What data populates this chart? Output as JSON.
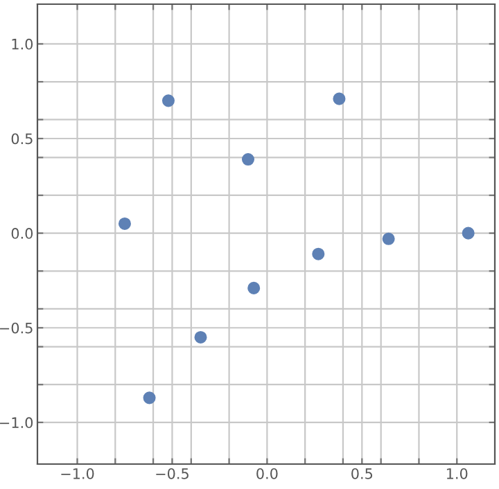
{
  "chart_data": {
    "type": "scatter",
    "x": [
      -0.52,
      0.38,
      -0.1,
      -0.75,
      1.06,
      0.64,
      0.27,
      -0.07,
      -0.35,
      -0.62
    ],
    "series": [
      {
        "color": "#5e81b5",
        "values": [
          0.7,
          0.71,
          0.39,
          0.05,
          0.0,
          -0.03,
          -0.11,
          -0.29,
          -0.55,
          -0.87
        ]
      }
    ],
    "marker": "circle",
    "grid": true,
    "legend": false,
    "xlim": [
      -1.21,
      1.2
    ],
    "ylim": [
      -1.22,
      1.21
    ],
    "xticks": [
      {
        "value": -1.0,
        "label": "−1.0"
      },
      {
        "value": -0.8,
        "label": null
      },
      {
        "value": -0.6,
        "label": null
      },
      {
        "value": -0.5,
        "label": "−0.5"
      },
      {
        "value": -0.4,
        "label": null
      },
      {
        "value": -0.2,
        "label": null
      },
      {
        "value": 0.0,
        "label": "0.0"
      },
      {
        "value": 0.2,
        "label": null
      },
      {
        "value": 0.4,
        "label": null
      },
      {
        "value": 0.5,
        "label": "0.5"
      },
      {
        "value": 0.6,
        "label": null
      },
      {
        "value": 0.8,
        "label": null
      },
      {
        "value": 1.0,
        "label": "1.0"
      }
    ],
    "yticks": [
      {
        "value": -1.0,
        "label": "−1.0"
      },
      {
        "value": -0.8,
        "label": null
      },
      {
        "value": -0.6,
        "label": null
      },
      {
        "value": -0.5,
        "label": "−0.5"
      },
      {
        "value": -0.4,
        "label": null
      },
      {
        "value": -0.2,
        "label": null
      },
      {
        "value": 0.0,
        "label": "0.0"
      },
      {
        "value": 0.2,
        "label": null
      },
      {
        "value": 0.4,
        "label": null
      },
      {
        "value": 0.5,
        "label": "0.5"
      },
      {
        "value": 0.6,
        "label": null
      },
      {
        "value": 0.8,
        "label": null
      },
      {
        "value": 1.0,
        "label": "1.0"
      }
    ]
  }
}
